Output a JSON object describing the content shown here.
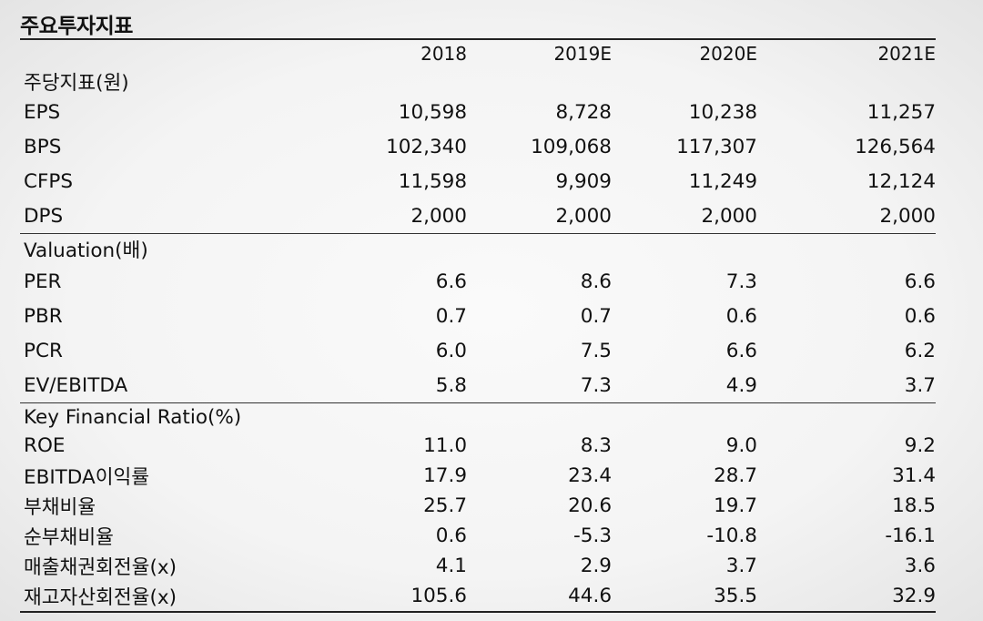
{
  "title": "주요투자지표",
  "columns": [
    "2018",
    "2019E",
    "2020E",
    "2021E"
  ],
  "sections": [
    {
      "heading": "주당지표(원)",
      "rows": [
        {
          "label": "EPS",
          "values": [
            "10,598",
            "8,728",
            "10,238",
            "11,257"
          ]
        },
        {
          "label": "BPS",
          "values": [
            "102,340",
            "109,068",
            "117,307",
            "126,564"
          ]
        },
        {
          "label": "CFPS",
          "values": [
            "11,598",
            "9,909",
            "11,249",
            "12,124"
          ]
        },
        {
          "label": "DPS",
          "values": [
            "2,000",
            "2,000",
            "2,000",
            "2,000"
          ]
        }
      ]
    },
    {
      "heading": "Valuation(배)",
      "rows": [
        {
          "label": "PER",
          "values": [
            "6.6",
            "8.6",
            "7.3",
            "6.6"
          ]
        },
        {
          "label": "PBR",
          "values": [
            "0.7",
            "0.7",
            "0.6",
            "0.6"
          ]
        },
        {
          "label": "PCR",
          "values": [
            "6.0",
            "7.5",
            "6.6",
            "6.2"
          ]
        },
        {
          "label": "EV/EBITDA",
          "values": [
            "5.8",
            "7.3",
            "4.9",
            "3.7"
          ]
        }
      ]
    },
    {
      "heading": "Key Financial Ratio(%)",
      "rows": [
        {
          "label": "ROE",
          "values": [
            "11.0",
            "8.3",
            "9.0",
            "9.2"
          ]
        },
        {
          "label": "EBITDA이익률",
          "values": [
            "17.9",
            "23.4",
            "28.7",
            "31.4"
          ]
        },
        {
          "label": "부채비율",
          "values": [
            "25.7",
            "20.6",
            "19.7",
            "18.5"
          ]
        },
        {
          "label": "순부채비율",
          "values": [
            "0.6",
            "-5.3",
            "-10.8",
            "-16.1"
          ]
        },
        {
          "label": "매출채권회전율(x)",
          "values": [
            "4.1",
            "2.9",
            "3.7",
            "3.6"
          ]
        },
        {
          "label": "재고자산회전율(x)",
          "values": [
            "105.6",
            "44.6",
            "35.5",
            "32.9"
          ]
        }
      ]
    }
  ]
}
